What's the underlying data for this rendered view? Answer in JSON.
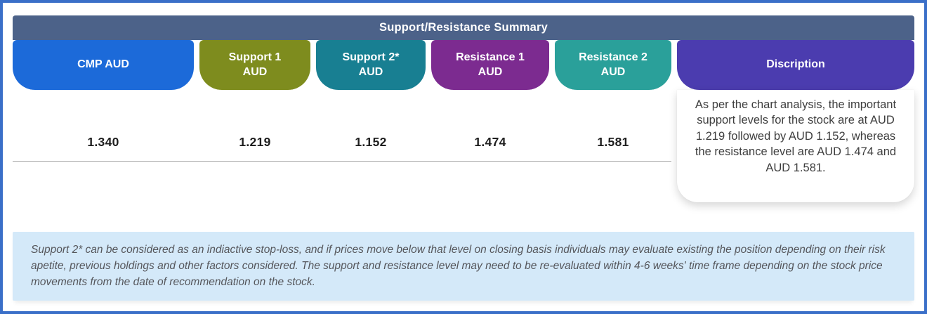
{
  "title": "Support/Resistance Summary",
  "columns": [
    {
      "label_line1": "CMP AUD",
      "label_line2": "",
      "value": "1.340",
      "color": "#1c6ad9"
    },
    {
      "label_line1": "Support 1",
      "label_line2": "AUD",
      "value": "1.219",
      "color": "#7e8c1e"
    },
    {
      "label_line1": "Support 2*",
      "label_line2": "AUD",
      "value": "1.152",
      "color": "#187f92"
    },
    {
      "label_line1": "Resistance 1",
      "label_line2": "AUD",
      "value": "1.474",
      "color": "#7c2b90"
    },
    {
      "label_line1": "Resistance 2",
      "label_line2": "AUD",
      "value": "1.581",
      "color": "#2aa09a"
    }
  ],
  "description": {
    "header": "Discription",
    "color": "#4b3caf",
    "text": "As per the chart analysis, the important support levels for the stock are at AUD 1.219 followed by AUD 1.152, whereas the resistance level are AUD 1.474 and AUD 1.581."
  },
  "footnote": "Support 2* can be considered as an indiactive stop-loss, and if prices move below that level on closing basis individuals may evaluate existing the position depending on their risk apetite, previous holdings and other factors considered. The support and resistance level may need to be re-evaluated within 4-6 weeks' time frame depending on the stock price movements from the date of recommendation on the stock.",
  "theme": {
    "outer_border": "#3a6fc8",
    "header_bg": "#4c6289",
    "footer_bg": "#d4e9f9",
    "divider": "#a8a8a8"
  }
}
